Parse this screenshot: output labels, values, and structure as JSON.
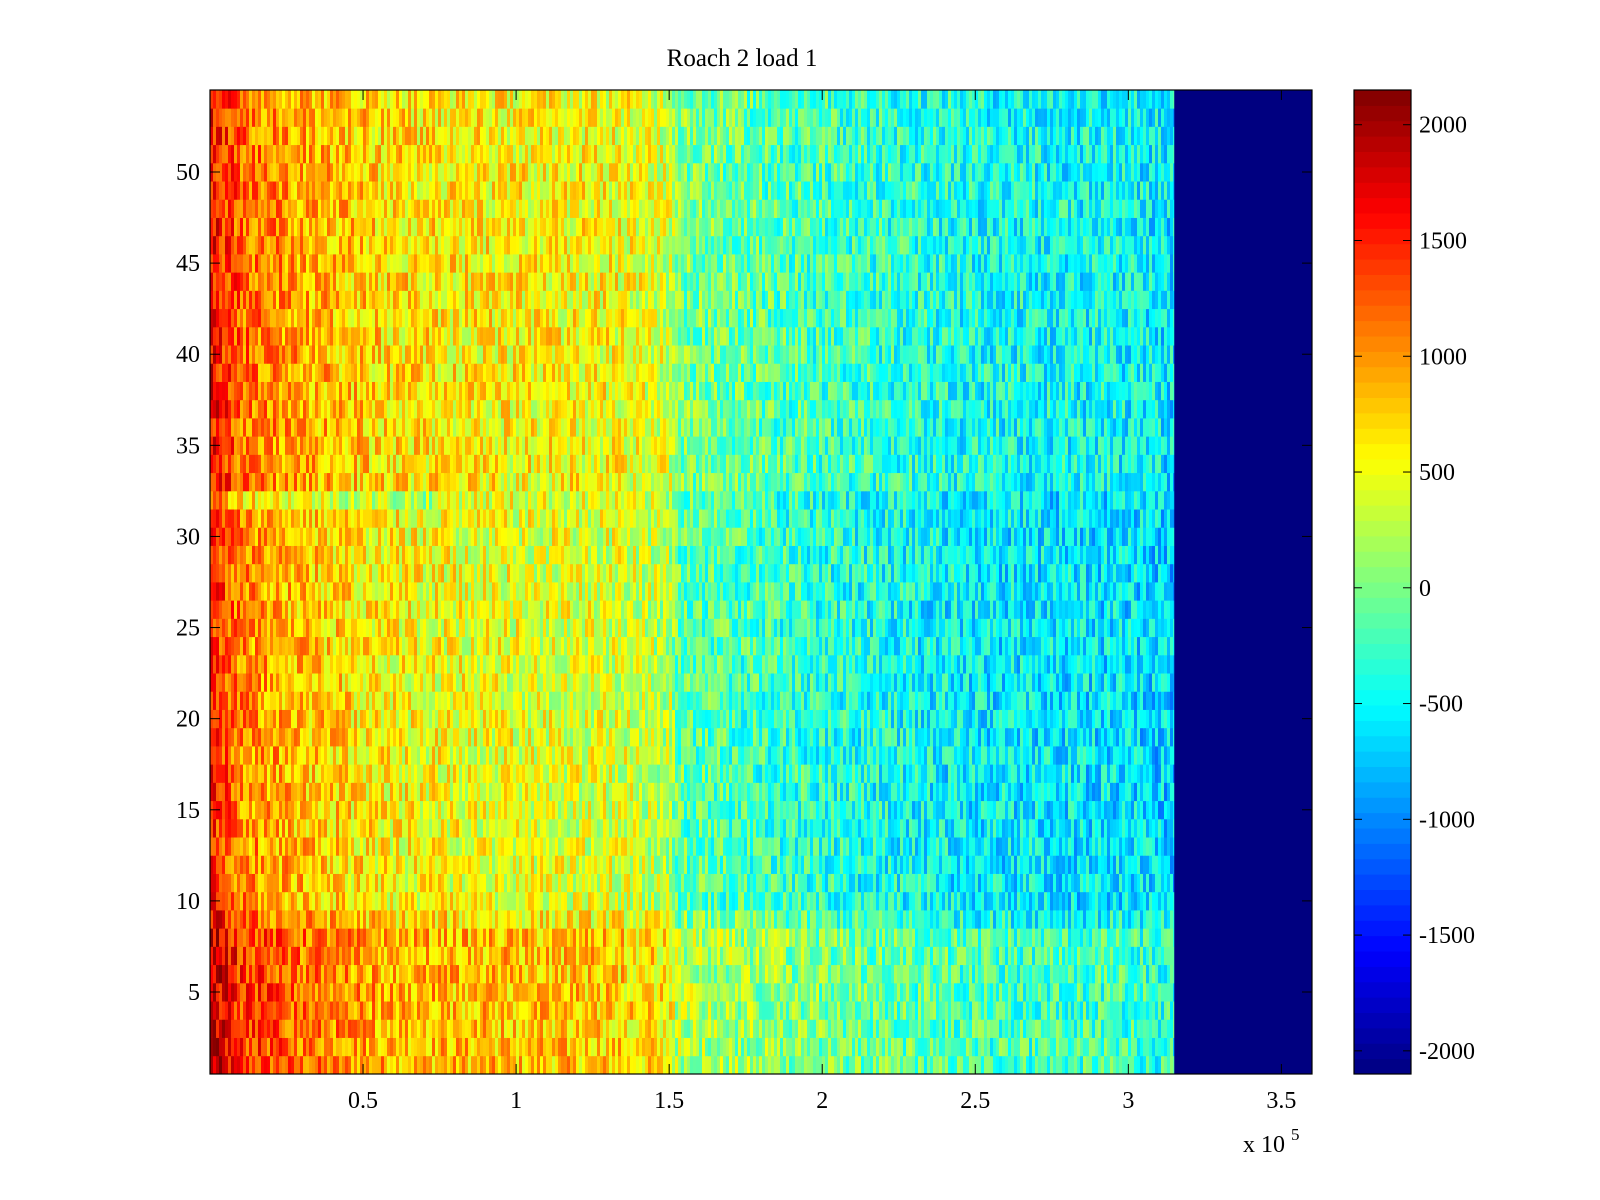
{
  "chart_data": {
    "type": "heatmap",
    "title": "Roach 2 load 1",
    "xlabel": "",
    "ylabel": "",
    "x_exponent_label": "x 10",
    "x_exponent_sup": "5",
    "xlim": [
      0,
      360000
    ],
    "ylim": [
      0.5,
      54.5
    ],
    "x_data_end": 315000,
    "rows": 54,
    "clim": [
      -2100,
      2150
    ],
    "colormap": "jet",
    "fill_value_after_data_end": -2100,
    "x_ticks": [
      {
        "value": 50000,
        "label": "0.5"
      },
      {
        "value": 100000,
        "label": "1"
      },
      {
        "value": 150000,
        "label": "1.5"
      },
      {
        "value": 200000,
        "label": "2"
      },
      {
        "value": 250000,
        "label": "2.5"
      },
      {
        "value": 300000,
        "label": "3"
      },
      {
        "value": 350000,
        "label": "3.5"
      }
    ],
    "y_ticks": [
      {
        "value": 5,
        "label": "5"
      },
      {
        "value": 10,
        "label": "10"
      },
      {
        "value": 15,
        "label": "15"
      },
      {
        "value": 20,
        "label": "20"
      },
      {
        "value": 25,
        "label": "25"
      },
      {
        "value": 30,
        "label": "30"
      },
      {
        "value": 35,
        "label": "35"
      },
      {
        "value": 40,
        "label": "40"
      },
      {
        "value": 45,
        "label": "45"
      },
      {
        "value": 50,
        "label": "50"
      }
    ],
    "colorbar_ticks": [
      {
        "value": 2000,
        "label": "2000"
      },
      {
        "value": 1500,
        "label": "1500"
      },
      {
        "value": 1000,
        "label": "1000"
      },
      {
        "value": 500,
        "label": "500"
      },
      {
        "value": 0,
        "label": "0"
      },
      {
        "value": -500,
        "label": "-500"
      },
      {
        "value": -1000,
        "label": "-1000"
      },
      {
        "value": -1500,
        "label": "-1500"
      },
      {
        "value": -2000,
        "label": "-2000"
      }
    ],
    "value_trend_by_x": [
      {
        "x": 0,
        "value": 1500
      },
      {
        "x": 10000,
        "value": 1050
      },
      {
        "x": 30000,
        "value": 800
      },
      {
        "x": 60000,
        "value": 550
      },
      {
        "x": 100000,
        "value": 450
      },
      {
        "x": 130000,
        "value": 420
      },
      {
        "x": 150000,
        "value": 250
      },
      {
        "x": 152000,
        "value": -100
      },
      {
        "x": 200000,
        "value": -350
      },
      {
        "x": 250000,
        "value": -550
      },
      {
        "x": 300000,
        "value": -600
      },
      {
        "x": 315000,
        "value": -700
      }
    ],
    "row_offsets": [
      {
        "rows": [
          1,
          8
        ],
        "offset": 350
      },
      {
        "rows": [
          9,
          9
        ],
        "offset": 150
      },
      {
        "rows": [
          32,
          32
        ],
        "offset": -300
      },
      {
        "rows": [
          33,
          54
        ],
        "offset": 120
      }
    ]
  }
}
